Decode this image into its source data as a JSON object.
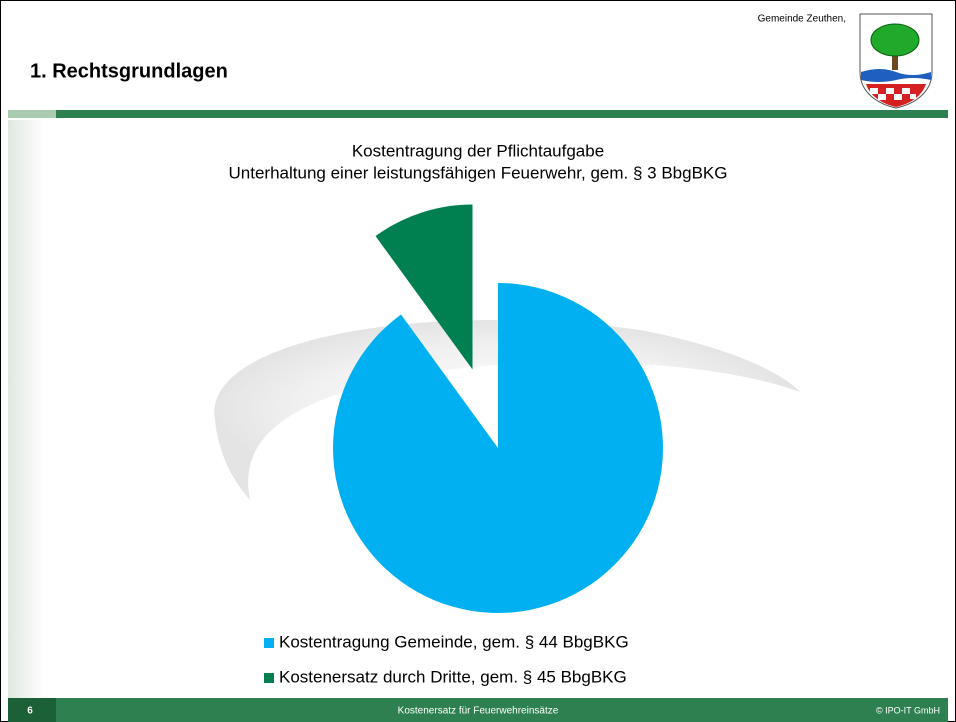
{
  "slide": {
    "title": "1. Rechtsgrundlagen",
    "org": "Gemeinde Zeuthen,"
  },
  "footer": {
    "page": "6",
    "center": "Kostenersatz für Feuerwehreinsätze",
    "copyright": "© IPO-IT GmbH"
  },
  "chart_data": {
    "type": "pie",
    "title": "Kostentragung der Pflichtaufgabe",
    "subtitle": "Unterhaltung einer leistungsfähigen Feuerwehr, gem. § 3 BbgBKG",
    "categories": [
      "Kostentragung Gemeinde, gem. § 44 BbgBKG",
      "Kostenersatz durch Dritte, gem. § 45 BbgBKG"
    ],
    "values": [
      90,
      10
    ],
    "colors": [
      "#00b0f0",
      "#008050"
    ],
    "explode": [
      0,
      0.5
    ],
    "legend": "bottom"
  }
}
